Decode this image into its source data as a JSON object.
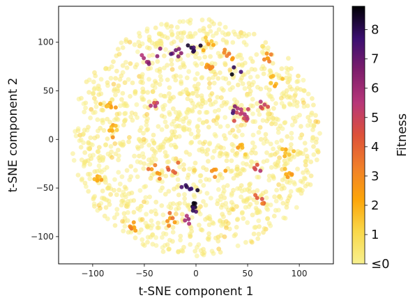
{
  "chart_data": {
    "type": "scatter",
    "title": "",
    "xlabel": "t-SNE component 1",
    "ylabel": "t-SNE component 2",
    "xlim": [
      -133,
      133
    ],
    "ylim": [
      -128,
      137
    ],
    "xticks": [
      -100,
      -50,
      0,
      50,
      100
    ],
    "yticks": [
      -100,
      -50,
      0,
      50,
      100
    ],
    "colorbar": {
      "label": "Fitness",
      "range": [
        0,
        8.8
      ],
      "ticks": [
        {
          "value": 0,
          "label": "≤0"
        },
        {
          "value": 1,
          "label": "1"
        },
        {
          "value": 2,
          "label": "2"
        },
        {
          "value": 3,
          "label": "3"
        },
        {
          "value": 4,
          "label": "4"
        },
        {
          "value": 5,
          "label": "5"
        },
        {
          "value": 6,
          "label": "6"
        },
        {
          "value": 7,
          "label": "7"
        },
        {
          "value": 8,
          "label": "8"
        }
      ],
      "colormap": [
        "#f7f08f",
        "#f9d84a",
        "#fca50a",
        "#f07f2a",
        "#dd513a",
        "#b73779",
        "#7e1e6c",
        "#3b0f70",
        "#000004"
      ]
    },
    "background_cloud": {
      "center": [
        0,
        2
      ],
      "radius": [
        121,
        122
      ],
      "n_points": 1400,
      "fitness": 0
    },
    "clusters": [
      {
        "x": -2,
        "y": 95,
        "fitness": 8,
        "n": 6
      },
      {
        "x": -17,
        "y": 90,
        "fitness": 6,
        "n": 5
      },
      {
        "x": -48,
        "y": 83,
        "fitness": 6,
        "n": 5
      },
      {
        "x": -32,
        "y": 89,
        "fitness": 7,
        "n": 3
      },
      {
        "x": 40,
        "y": 70,
        "fitness": 8,
        "n": 3
      },
      {
        "x": 70,
        "y": 85,
        "fitness": 3,
        "n": 6
      },
      {
        "x": 45,
        "y": 25,
        "fitness": 5,
        "n": 12
      },
      {
        "x": 38,
        "y": 30,
        "fitness": 7,
        "n": 3
      },
      {
        "x": 62,
        "y": 35,
        "fitness": 5,
        "n": 5
      },
      {
        "x": -5,
        "y": -50,
        "fitness": 8,
        "n": 6
      },
      {
        "x": -3,
        "y": -68,
        "fitness": 8,
        "n": 7
      },
      {
        "x": -8,
        "y": -85,
        "fitness": 6,
        "n": 4
      },
      {
        "x": -40,
        "y": -35,
        "fitness": 3,
        "n": 6
      },
      {
        "x": -25,
        "y": -30,
        "fitness": 4,
        "n": 5
      },
      {
        "x": 20,
        "y": -30,
        "fitness": 3,
        "n": 5
      },
      {
        "x": 63,
        "y": -60,
        "fitness": 4,
        "n": 6
      },
      {
        "x": 60,
        "y": -28,
        "fitness": 5,
        "n": 4
      },
      {
        "x": -40,
        "y": 40,
        "fitness": 5,
        "n": 4
      },
      {
        "x": 15,
        "y": 75,
        "fitness": 3,
        "n": 8
      },
      {
        "x": -85,
        "y": 35,
        "fitness": 2,
        "n": 8
      },
      {
        "x": -60,
        "y": -90,
        "fitness": 3,
        "n": 6
      },
      {
        "x": 90,
        "y": -35,
        "fitness": 2,
        "n": 6
      },
      {
        "x": -25,
        "y": -85,
        "fitness": 3,
        "n": 6
      },
      {
        "x": 10,
        "y": 100,
        "fitness": 2,
        "n": 6
      },
      {
        "x": 30,
        "y": 85,
        "fitness": 3,
        "n": 6
      },
      {
        "x": 75,
        "y": 60,
        "fitness": 2,
        "n": 6
      },
      {
        "x": -80,
        "y": 10,
        "fitness": 2,
        "n": 8
      },
      {
        "x": 85,
        "y": -15,
        "fitness": 2,
        "n": 6
      },
      {
        "x": -95,
        "y": -40,
        "fitness": 2,
        "n": 6
      },
      {
        "x": 45,
        "y": -10,
        "fitness": 2,
        "n": 5
      }
    ]
  }
}
